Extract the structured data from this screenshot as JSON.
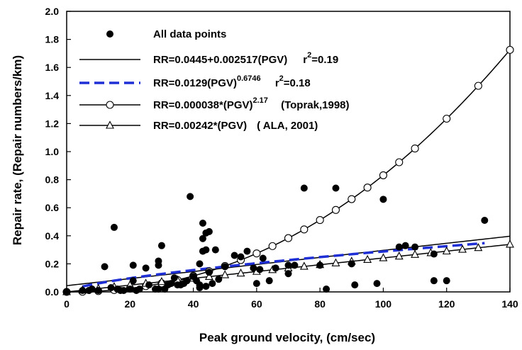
{
  "chart_data": {
    "type": "scatter",
    "xlabel": "Peak ground velocity, (cm/sec)",
    "ylabel": "Repair rate, (Repair numbers/km)",
    "xlim": [
      0,
      140
    ],
    "ylim": [
      0,
      2.0
    ],
    "x_ticks": [
      0,
      20,
      40,
      60,
      80,
      100,
      120,
      140
    ],
    "y_ticks": [
      0.0,
      0.2,
      0.4,
      0.6,
      0.8,
      1.0,
      1.2,
      1.4,
      1.6,
      1.8,
      2.0
    ],
    "grid": false,
    "legend_position": "top-left",
    "legend": [
      {
        "key": "data",
        "marker": "filled-circle",
        "text": "All data points",
        "sup": "",
        "text2": ""
      },
      {
        "key": "linear",
        "marker": "line",
        "text": "RR=0.0445+0.002517(PGV)",
        "sup": "",
        "text2": "r",
        "sup2": "2",
        "text3": "=0.19"
      },
      {
        "key": "power",
        "marker": "dashed-blue",
        "text": "RR=0.0129(PGV)",
        "sup": "0.6746",
        "text2": "r",
        "sup2": "2",
        "text3": "=0.18"
      },
      {
        "key": "toprak",
        "marker": "line-open-circle",
        "text": "RR=0.000038*(PGV)",
        "sup": "2.17",
        "text2": "(Toprak,1998)",
        "sup2": "",
        "text3": ""
      },
      {
        "key": "ala",
        "marker": "line-open-triangle",
        "text": "RR=0.00242*(PGV)",
        "sup": "",
        "text2": "( ALA, 2001)",
        "sup2": "",
        "text3": ""
      }
    ],
    "series": [
      {
        "name": "All data points",
        "points": [
          [
            0,
            0
          ],
          [
            5,
            0.01
          ],
          [
            7,
            0.01
          ],
          [
            8,
            0.02
          ],
          [
            10,
            0.01
          ],
          [
            12,
            0.18
          ],
          [
            14,
            0.03
          ],
          [
            15,
            0.46
          ],
          [
            16,
            0.02
          ],
          [
            17,
            0.01
          ],
          [
            18,
            0.01
          ],
          [
            20,
            0.02
          ],
          [
            21,
            0.19
          ],
          [
            21,
            0.08
          ],
          [
            22,
            0.01
          ],
          [
            23,
            0.02
          ],
          [
            25,
            0.17
          ],
          [
            26,
            0.05
          ],
          [
            28,
            0.02
          ],
          [
            29,
            0.02
          ],
          [
            29,
            0.19
          ],
          [
            29,
            0.22
          ],
          [
            30,
            0.33
          ],
          [
            31,
            0.02
          ],
          [
            32,
            0.05
          ],
          [
            33,
            0.06
          ],
          [
            34,
            0.1
          ],
          [
            35,
            0.05
          ],
          [
            36,
            0.05
          ],
          [
            37,
            0.06
          ],
          [
            38,
            0.08
          ],
          [
            39,
            0.68
          ],
          [
            40,
            0.11
          ],
          [
            41,
            0.08
          ],
          [
            42,
            0.05
          ],
          [
            42,
            0.03
          ],
          [
            42,
            0.2
          ],
          [
            43,
            0.29
          ],
          [
            43,
            0.38
          ],
          [
            43,
            0.49
          ],
          [
            44,
            0.3
          ],
          [
            44,
            0.42
          ],
          [
            44,
            0.04
          ],
          [
            45,
            0.43
          ],
          [
            45,
            0.14
          ],
          [
            46,
            0.06
          ],
          [
            47,
            0.3
          ],
          [
            48,
            0.09
          ],
          [
            50,
            0.18
          ],
          [
            53,
            0.26
          ],
          [
            55,
            0.25
          ],
          [
            57,
            0.29
          ],
          [
            59,
            0.17
          ],
          [
            60,
            0.06
          ],
          [
            61,
            0.16
          ],
          [
            62,
            0.24
          ],
          [
            64,
            0.08
          ],
          [
            66,
            0.17
          ],
          [
            70,
            0.19
          ],
          [
            70,
            0.13
          ],
          [
            72,
            0.19
          ],
          [
            75,
            0.74
          ],
          [
            80,
            0.19
          ],
          [
            82,
            0.02
          ],
          [
            85,
            0.74
          ],
          [
            90,
            0.2
          ],
          [
            91,
            0.05
          ],
          [
            98,
            0.06
          ],
          [
            100,
            0.66
          ],
          [
            105,
            0.32
          ],
          [
            107,
            0.33
          ],
          [
            110,
            0.32
          ],
          [
            116,
            0.27
          ],
          [
            116,
            0.08
          ],
          [
            120,
            0.08
          ],
          [
            132,
            0.51
          ]
        ]
      },
      {
        "name": "RR=0.0445+0.002517(PGV)",
        "model": "linear",
        "a": 0.0445,
        "b": 0.002517,
        "x_range": [
          0,
          140
        ]
      },
      {
        "name": "RR=0.0129(PGV)^0.6746",
        "model": "power",
        "a": 0.0129,
        "b": 0.6746,
        "x_range": [
          5,
          132
        ]
      },
      {
        "name": "RR=0.000038*(PGV)^2.17",
        "model": "power",
        "a": 3.8e-05,
        "b": 2.17,
        "x_range": [
          0,
          140
        ],
        "marker_x": [
          0,
          5,
          10,
          15,
          20,
          25,
          30,
          35,
          40,
          45,
          50,
          55,
          60,
          65,
          70,
          75,
          80,
          85,
          90,
          95,
          100,
          105,
          110,
          120,
          130,
          140
        ]
      },
      {
        "name": "RR=0.00242*(PGV)",
        "model": "linear",
        "a": 0,
        "b": 0.00242,
        "x_range": [
          0,
          140
        ],
        "marker_x": [
          0,
          5,
          10,
          15,
          20,
          25,
          30,
          35,
          40,
          45,
          50,
          55,
          60,
          65,
          70,
          75,
          80,
          85,
          90,
          95,
          100,
          105,
          110,
          115,
          120,
          125,
          130,
          140
        ]
      }
    ]
  }
}
